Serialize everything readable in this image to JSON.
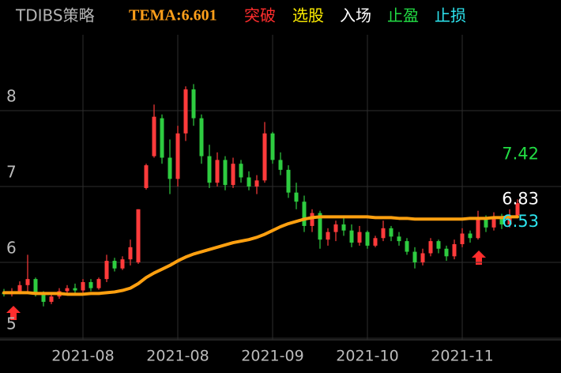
{
  "chart_data": {
    "type": "candlestick",
    "legend": [
      {
        "name": "TDIBS策略",
        "color": "#b5b5b5"
      },
      {
        "name": "TEMA:6.601",
        "color": "#ff9f1a"
      },
      {
        "name": "突破",
        "color": "#ff2d2d"
      },
      {
        "name": "选股",
        "color": "#ffee00"
      },
      {
        "name": "入场",
        "color": "#ffffff"
      },
      {
        "name": "止盈",
        "color": "#22dd44"
      },
      {
        "name": "止损",
        "color": "#2de6f0"
      }
    ],
    "categories": [
      null,
      null,
      null,
      null,
      null,
      null,
      null,
      null,
      null,
      null,
      "2021-08",
      null,
      null,
      null,
      null,
      null,
      null,
      null,
      null,
      null,
      null,
      null,
      "2021-08",
      null,
      null,
      null,
      null,
      null,
      null,
      null,
      null,
      null,
      null,
      null,
      "2021-09",
      null,
      null,
      null,
      null,
      null,
      null,
      null,
      null,
      null,
      null,
      null,
      "2021-10",
      null,
      null,
      null,
      null,
      null,
      null,
      null,
      null,
      null,
      null,
      null,
      "2021-11",
      null,
      null,
      null,
      null,
      null,
      null,
      null
    ],
    "candles": [
      [
        5.6,
        5.65,
        5.55,
        5.58
      ],
      [
        5.58,
        5.66,
        5.55,
        5.62
      ],
      [
        5.62,
        5.75,
        5.58,
        5.7
      ],
      [
        5.7,
        6.1,
        5.62,
        5.78
      ],
      [
        5.78,
        5.8,
        5.55,
        5.6
      ],
      [
        5.6,
        5.62,
        5.42,
        5.48
      ],
      [
        5.48,
        5.58,
        5.45,
        5.55
      ],
      [
        5.55,
        5.66,
        5.52,
        5.62
      ],
      [
        5.62,
        5.7,
        5.58,
        5.66
      ],
      [
        5.66,
        5.72,
        5.6,
        5.63
      ],
      [
        5.63,
        5.78,
        5.6,
        5.74
      ],
      [
        5.74,
        5.78,
        5.62,
        5.66
      ],
      [
        5.66,
        5.8,
        5.64,
        5.78
      ],
      [
        5.78,
        6.1,
        5.74,
        6.02
      ],
      [
        6.02,
        6.06,
        5.88,
        5.92
      ],
      [
        5.92,
        6.08,
        5.9,
        6.04
      ],
      [
        6.04,
        6.3,
        5.96,
        6.2
      ],
      [
        6.0,
        6.7,
        5.98,
        6.7
      ],
      [
        6.98,
        7.3,
        6.96,
        7.28
      ],
      [
        7.4,
        8.08,
        7.38,
        7.92
      ],
      [
        7.9,
        7.95,
        7.3,
        7.38
      ],
      [
        7.38,
        7.62,
        6.9,
        7.1
      ],
      [
        7.1,
        7.8,
        7.0,
        7.7
      ],
      [
        7.7,
        8.32,
        7.6,
        8.28
      ],
      [
        8.28,
        8.35,
        7.8,
        7.9
      ],
      [
        7.9,
        7.95,
        7.3,
        7.4
      ],
      [
        7.4,
        7.55,
        6.98,
        7.05
      ],
      [
        7.05,
        7.45,
        7.0,
        7.35
      ],
      [
        7.35,
        7.4,
        6.95,
        7.02
      ],
      [
        7.02,
        7.38,
        6.98,
        7.3
      ],
      [
        7.3,
        7.35,
        7.05,
        7.12
      ],
      [
        7.12,
        7.2,
        6.95,
        7.0
      ],
      [
        7.0,
        7.15,
        6.9,
        7.08
      ],
      [
        7.08,
        7.85,
        7.05,
        7.7
      ],
      [
        7.7,
        7.72,
        7.3,
        7.35
      ],
      [
        7.35,
        7.45,
        7.15,
        7.22
      ],
      [
        7.22,
        7.28,
        6.85,
        6.92
      ],
      [
        6.92,
        7.05,
        6.7,
        6.8
      ],
      [
        6.8,
        6.88,
        6.4,
        6.48
      ],
      [
        6.48,
        6.7,
        6.4,
        6.65
      ],
      [
        6.65,
        6.68,
        6.18,
        6.3
      ],
      [
        6.3,
        6.45,
        6.22,
        6.4
      ],
      [
        6.4,
        6.55,
        6.28,
        6.5
      ],
      [
        6.5,
        6.62,
        6.35,
        6.42
      ],
      [
        6.42,
        6.5,
        6.2,
        6.26
      ],
      [
        6.26,
        6.48,
        6.22,
        6.4
      ],
      [
        6.4,
        6.42,
        6.18,
        6.22
      ],
      [
        6.22,
        6.35,
        6.2,
        6.32
      ],
      [
        6.32,
        6.55,
        6.28,
        6.45
      ],
      [
        6.45,
        6.48,
        6.28,
        6.34
      ],
      [
        6.34,
        6.4,
        6.22,
        6.28
      ],
      [
        6.28,
        6.32,
        6.1,
        6.14
      ],
      [
        6.14,
        6.2,
        5.92,
        6.0
      ],
      [
        6.0,
        6.18,
        5.96,
        6.12
      ],
      [
        6.12,
        6.32,
        6.08,
        6.28
      ],
      [
        6.28,
        6.3,
        6.12,
        6.18
      ],
      [
        6.18,
        6.22,
        6.02,
        6.08
      ],
      [
        6.08,
        6.3,
        6.04,
        6.24
      ],
      [
        6.24,
        6.45,
        6.2,
        6.38
      ],
      [
        6.38,
        6.42,
        6.26,
        6.32
      ],
      [
        6.32,
        6.68,
        6.3,
        6.58
      ],
      [
        6.58,
        6.62,
        6.4,
        6.46
      ],
      [
        6.46,
        6.66,
        6.42,
        6.6
      ],
      [
        6.6,
        6.64,
        6.44,
        6.5
      ],
      [
        6.5,
        6.7,
        6.46,
        6.62
      ],
      [
        6.62,
        6.83,
        6.58,
        6.78
      ]
    ],
    "up_color": "#ff3b3b",
    "down_color": "#2ecc40",
    "tema": {
      "color": "#ffa010",
      "values": [
        5.6,
        5.6,
        5.6,
        5.6,
        5.59,
        5.59,
        5.59,
        5.59,
        5.58,
        5.58,
        5.58,
        5.59,
        5.59,
        5.6,
        5.61,
        5.63,
        5.66,
        5.72,
        5.8,
        5.86,
        5.91,
        5.96,
        6.02,
        6.07,
        6.11,
        6.14,
        6.17,
        6.2,
        6.23,
        6.26,
        6.28,
        6.3,
        6.33,
        6.37,
        6.42,
        6.47,
        6.51,
        6.54,
        6.57,
        6.59,
        6.6,
        6.6,
        6.6,
        6.6,
        6.6,
        6.6,
        6.6,
        6.59,
        6.59,
        6.59,
        6.58,
        6.58,
        6.57,
        6.57,
        6.57,
        6.57,
        6.57,
        6.57,
        6.57,
        6.58,
        6.58,
        6.58,
        6.59,
        6.59,
        6.6,
        6.6
      ]
    },
    "price_labels": [
      {
        "value": 7.42,
        "color": "#22dd44"
      },
      {
        "value": 6.83,
        "color": "#ffffff"
      },
      {
        "value": 6.53,
        "color": "#2de6f0"
      }
    ],
    "ylim": [
      5,
      9
    ],
    "yticks": [
      5,
      6,
      7,
      8
    ],
    "grid": true
  }
}
